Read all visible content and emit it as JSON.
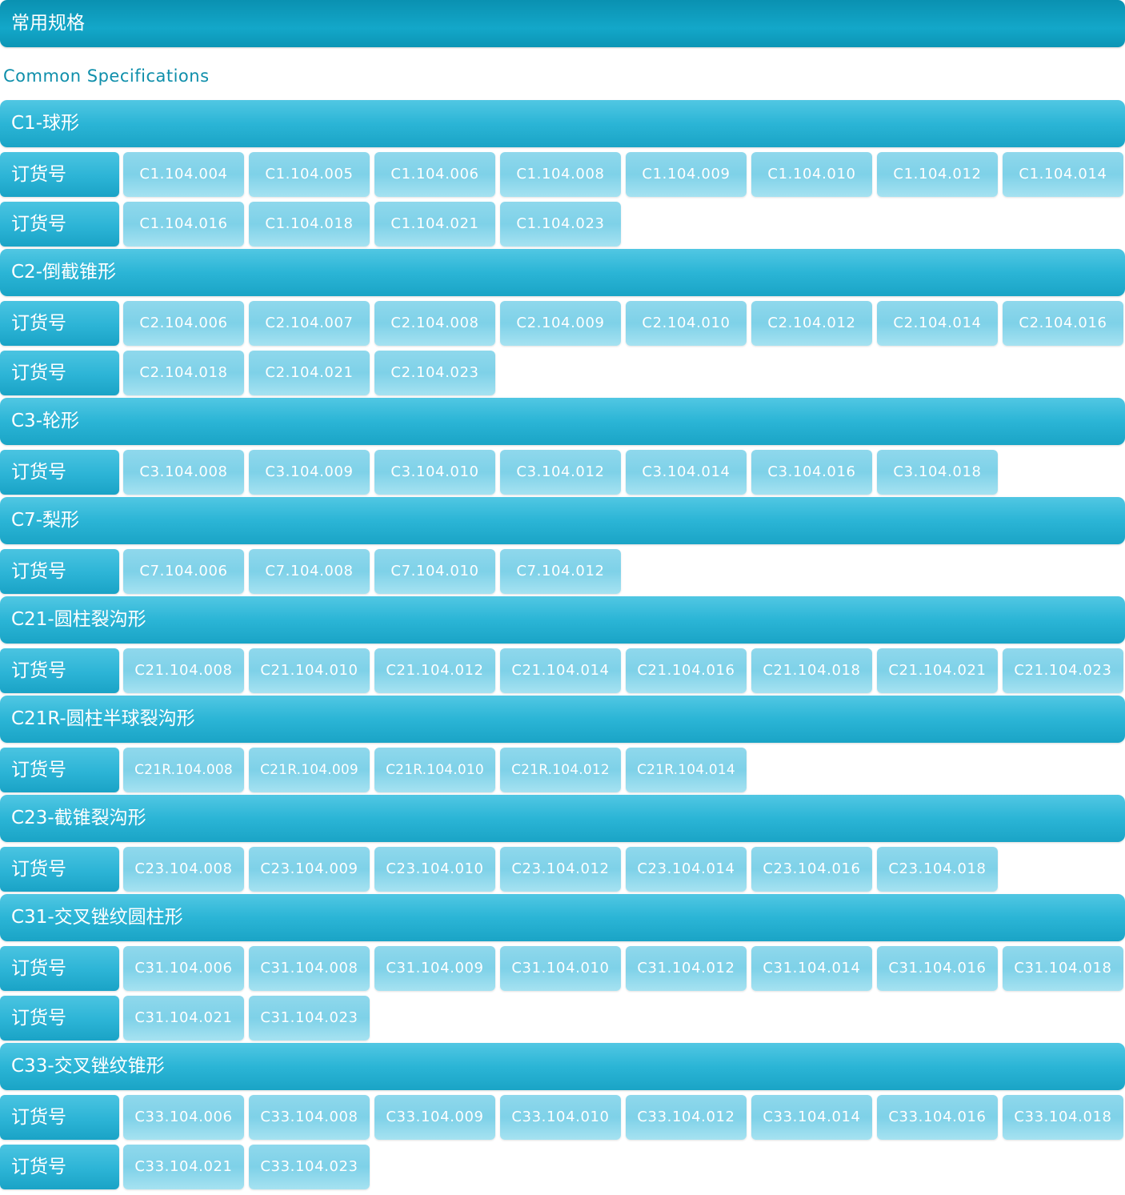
{
  "page": {
    "title": "常用规格",
    "subtitle": "Common Specifications"
  },
  "order_label": "订货号",
  "sections": [
    {
      "title": "C1-球形",
      "rows": [
        [
          "C1.104.004",
          "C1.104.005",
          "C1.104.006",
          "C1.104.008",
          "C1.104.009",
          "C1.104.010",
          "C1.104.012",
          "C1.104.014"
        ],
        [
          "C1.104.016",
          "C1.104.018",
          "C1.104.021",
          "C1.104.023"
        ]
      ]
    },
    {
      "title": "C2-倒截锥形",
      "rows": [
        [
          "C2.104.006",
          "C2.104.007",
          "C2.104.008",
          "C2.104.009",
          "C2.104.010",
          "C2.104.012",
          "C2.104.014",
          "C2.104.016"
        ],
        [
          "C2.104.018",
          "C2.104.021",
          "C2.104.023"
        ]
      ]
    },
    {
      "title": "C3-轮形",
      "rows": [
        [
          "C3.104.008",
          "C3.104.009",
          "C3.104.010",
          "C3.104.012",
          "C3.104.014",
          "C3.104.016",
          "C3.104.018"
        ]
      ]
    },
    {
      "title": "C7-梨形",
      "rows": [
        [
          "C7.104.006",
          "C7.104.008",
          "C7.104.010",
          "C7.104.012"
        ]
      ]
    },
    {
      "title": "C21-圆柱裂沟形",
      "rows": [
        [
          "C21.104.008",
          "C21.104.010",
          "C21.104.012",
          "C21.104.014",
          "C21.104.016",
          "C21.104.018",
          "C21.104.021",
          "C21.104.023"
        ]
      ]
    },
    {
      "title": "C21R-圆柱半球裂沟形",
      "rows": [
        [
          "C21R.104.008",
          "C21R.104.009",
          "C21R.104.010",
          "C21R.104.012",
          "C21R.104.014"
        ]
      ]
    },
    {
      "title": "C23-截锥裂沟形",
      "rows": [
        [
          "C23.104.008",
          "C23.104.009",
          "C23.104.010",
          "C23.104.012",
          "C23.104.014",
          "C23.104.016",
          "C23.104.018"
        ]
      ]
    },
    {
      "title": "C31-交叉锉纹圆柱形",
      "rows": [
        [
          "C31.104.006",
          "C31.104.008",
          "C31.104.009",
          "C31.104.010",
          "C31.104.012",
          "C31.104.014",
          "C31.104.016",
          "C31.104.018"
        ],
        [
          "C31.104.021",
          "C31.104.023"
        ]
      ]
    },
    {
      "title": "C33-交叉锉纹锥形",
      "rows": [
        [
          "C33.104.006",
          "C33.104.008",
          "C33.104.009",
          "C33.104.010",
          "C33.104.012",
          "C33.104.014",
          "C33.104.016",
          "C33.104.018"
        ],
        [
          "C33.104.021",
          "C33.104.023"
        ]
      ]
    }
  ]
}
